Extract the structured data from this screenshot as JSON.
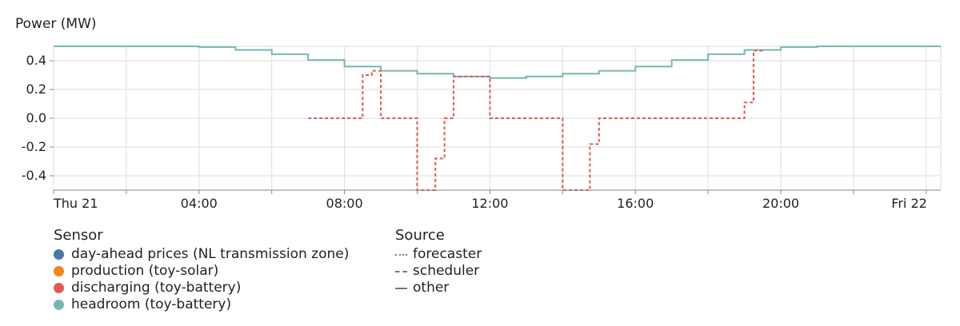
{
  "chart_data": {
    "type": "line",
    "ylabel": "Power (MW)",
    "ylim": [
      -0.5,
      0.5
    ],
    "y_ticks": [
      -0.4,
      -0.2,
      0.0,
      0.2,
      0.4
    ],
    "y_tick_labels": [
      "-0.4",
      "-0.2",
      "0.0",
      "0.2",
      "0.4"
    ],
    "x_ticks": [
      0,
      4,
      8,
      12,
      16,
      20,
      24
    ],
    "x_tick_labels": [
      "Thu 21",
      "04:00",
      "08:00",
      "12:00",
      "16:00",
      "20:00",
      "Fri 22"
    ],
    "x_minor_ticks": [
      2,
      6,
      10,
      14,
      18,
      22
    ],
    "xlim": [
      0,
      24.4
    ],
    "grid": true,
    "legend_position": "bottom-left",
    "series": [
      {
        "name": "headroom (toy-battery)",
        "source": "other",
        "color": "#76b7b2",
        "style": "solid",
        "step": true,
        "x": [
          0,
          4,
          5,
          6,
          7,
          8,
          9,
          10,
          11,
          12,
          13,
          14,
          15,
          16,
          17,
          18,
          19,
          20,
          21,
          22,
          23,
          24.4
        ],
        "y": [
          0.5,
          0.495,
          0.475,
          0.445,
          0.405,
          0.36,
          0.33,
          0.31,
          0.29,
          0.28,
          0.29,
          0.31,
          0.33,
          0.36,
          0.405,
          0.445,
          0.475,
          0.495,
          0.5,
          0.5,
          0.5,
          0.5
        ]
      },
      {
        "name": "discharging (toy-battery)",
        "source": "scheduler",
        "color": "#e45756",
        "style": "dashed",
        "step": true,
        "x": [
          7,
          8.5,
          8.75,
          9,
          10,
          10.5,
          10.75,
          11,
          12,
          14,
          14.75,
          15,
          19,
          19.25,
          19.5
        ],
        "y": [
          0.0,
          0.3,
          0.33,
          0.0,
          -0.5,
          -0.28,
          0.0,
          0.29,
          0.0,
          -0.5,
          -0.18,
          0.0,
          0.11,
          0.47,
          0.47
        ]
      }
    ]
  },
  "legend": {
    "sensor_title": "Sensor",
    "sensors": [
      {
        "label": "day-ahead prices (NL transmission zone)",
        "color": "#4c78a8"
      },
      {
        "label": "production (toy-solar)",
        "color": "#f58518"
      },
      {
        "label": "discharging (toy-battery)",
        "color": "#e45756"
      },
      {
        "label": "headroom (toy-battery)",
        "color": "#76b7b2"
      }
    ],
    "source_title": "Source",
    "sources": [
      {
        "label": "forecaster",
        "style": "dotted"
      },
      {
        "label": "scheduler",
        "style": "dashed"
      },
      {
        "label": "other",
        "style": "solid"
      }
    ]
  }
}
